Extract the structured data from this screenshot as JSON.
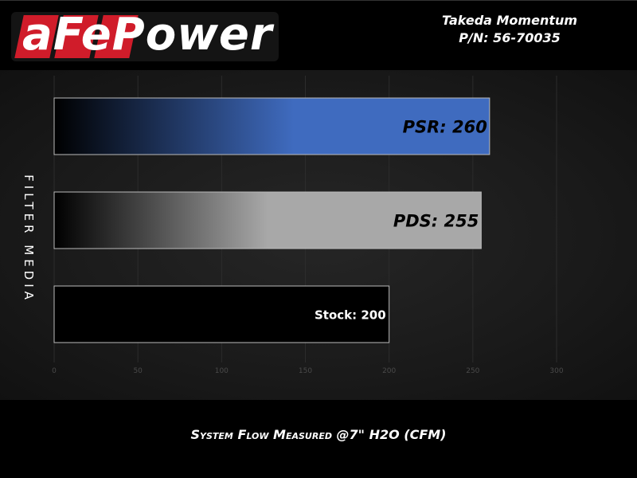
{
  "header": {
    "logo_text": "aFePower",
    "title": "Takeda Momentum",
    "part_number": "P/N: 56-70035"
  },
  "chart_data": {
    "type": "bar",
    "orientation": "horizontal",
    "categories": [
      "PSR",
      "PDS",
      "Stock"
    ],
    "values": [
      260,
      255,
      200
    ],
    "data_labels": [
      "PSR: 260",
      "PDS: 255",
      "Stock: 200"
    ],
    "xlabel": "System Flow Measured @7\" H2O (CFM)",
    "ylabel": "FILTER MEDIA",
    "xlim": [
      0,
      300
    ],
    "xticks": [
      0,
      50,
      100,
      150,
      200,
      250,
      300
    ],
    "grid": true,
    "colors": {
      "PSR": "#3f6bbf",
      "PDS": "#a8a8a8",
      "Stock": "#000000"
    }
  }
}
